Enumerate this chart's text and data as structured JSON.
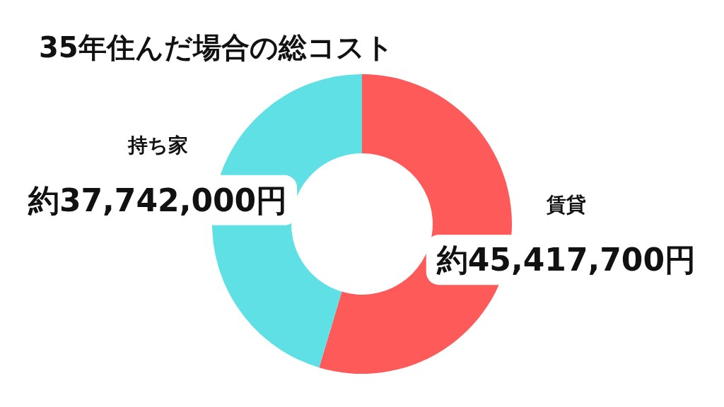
{
  "chart_data": {
    "type": "donut",
    "title": "35年住んだ場合の総コスト",
    "categories": [
      "賃貸",
      "持ち家"
    ],
    "values": [
      45417700,
      37742000
    ],
    "colors": [
      "#fe5a5a",
      "#5ee0e5"
    ],
    "value_labels": [
      "約45,417,700円",
      "約37,742,000円"
    ]
  }
}
